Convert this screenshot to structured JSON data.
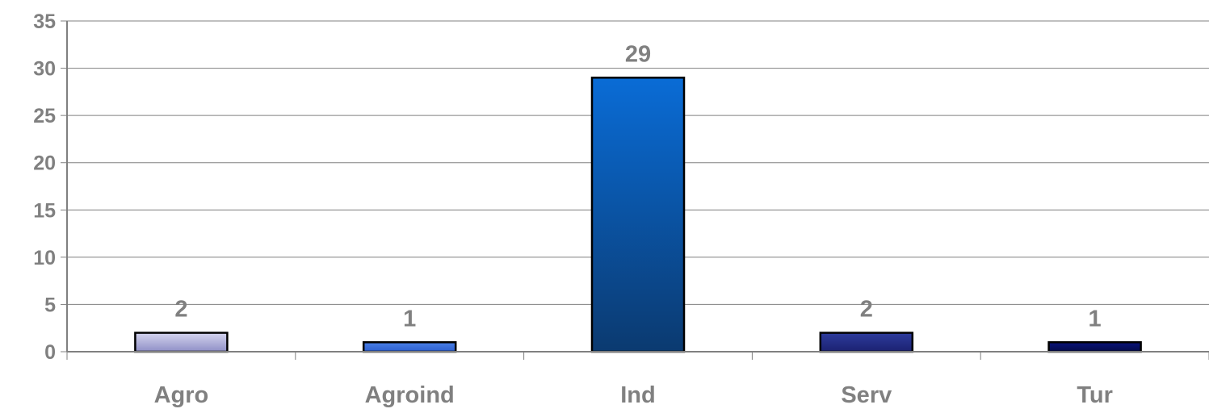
{
  "chart_data": {
    "type": "bar",
    "title": "",
    "xlabel": "",
    "ylabel": "",
    "categories": [
      "Agro",
      "Agroind",
      "Ind",
      "Serv",
      "Tur"
    ],
    "values": [
      2,
      1,
      29,
      2,
      1
    ],
    "data_labels": [
      "2",
      "1",
      "29",
      "2",
      "1"
    ],
    "ylim": [
      0,
      35
    ],
    "y_ticks": [
      0,
      5,
      10,
      15,
      20,
      25,
      30,
      35
    ],
    "grid": true,
    "legend": "none",
    "bar_colors": [
      [
        "#d4d4ee",
        "#8f8fc6"
      ],
      [
        "#4a7fe6",
        "#2c5fd0"
      ],
      [
        "#0a6cd6",
        "#0b3a70"
      ],
      [
        "#2e3c9e",
        "#1b2170"
      ],
      [
        "#0a137a",
        "#030a48"
      ]
    ]
  }
}
